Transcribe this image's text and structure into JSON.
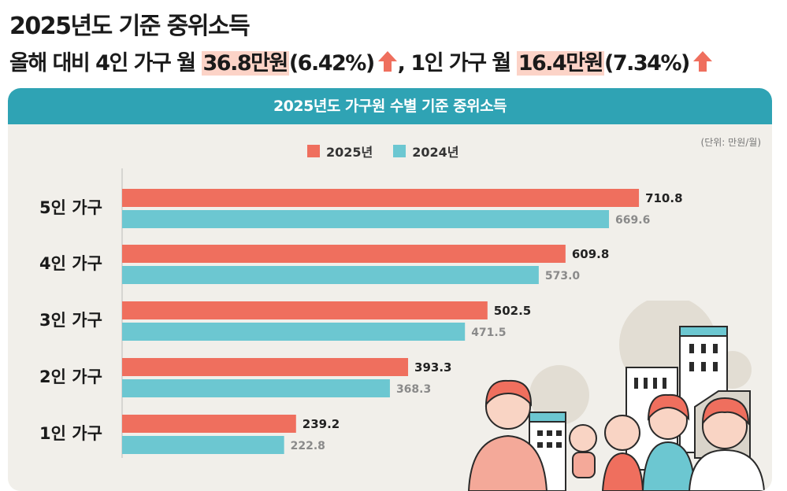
{
  "headline": {
    "line1": "2025년도 기준 중위소득",
    "line2_pre": "올해 대비 4인 가구 월 ",
    "line2_hl1": "36.8만원",
    "line2_mid1": "(6.42%)",
    "line2_mid2": ", 1인 가구 월 ",
    "line2_hl2": "16.4만원",
    "line2_end": "(7.34%)"
  },
  "card": {
    "title": "2025년도 가구원 수별 기준 중위소득",
    "unit": "(단위: 만원/월)"
  },
  "colors": {
    "y2025": "#ef6f5e",
    "y2024": "#6cc7d1",
    "header": "#2fa3b4",
    "arrow": "#ef6f5e",
    "highlight": "#fcd3c7"
  },
  "chart_data": {
    "type": "bar",
    "orientation": "horizontal",
    "categories": [
      "5인 가구",
      "4인 가구",
      "3인 가구",
      "2인 가구",
      "1인 가구"
    ],
    "series": [
      {
        "name": "2025년",
        "values": [
          710.8,
          609.8,
          502.5,
          393.3,
          239.2
        ]
      },
      {
        "name": "2024년",
        "values": [
          669.6,
          573.0,
          471.5,
          368.3,
          222.8
        ]
      }
    ],
    "value_labels": {
      "2025년": [
        "710.8",
        "609.8",
        "502.5",
        "393.3",
        "239.2"
      ],
      "2024년": [
        "669.6",
        "573.0",
        "471.5",
        "368.3",
        "222.8"
      ]
    },
    "legend_position": "top",
    "grid": false
  }
}
